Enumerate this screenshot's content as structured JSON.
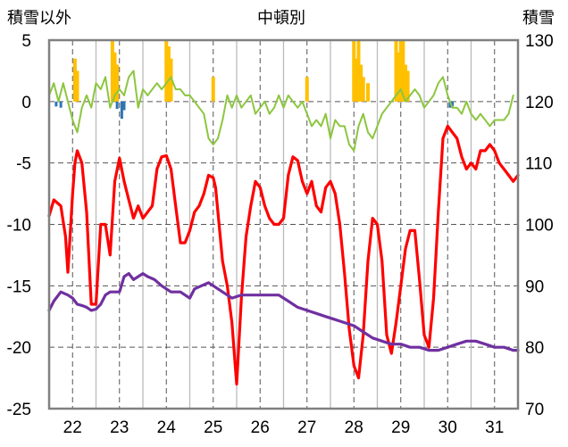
{
  "chart_data": {
    "type": "line",
    "left_axis_title": "積雪以外",
    "title": "中頓別",
    "right_axis_title": "積雪",
    "left_ylim": [
      -25,
      5
    ],
    "left_ticks": [
      5,
      0,
      -5,
      -10,
      -15,
      -20,
      -25
    ],
    "right_ylim": [
      70,
      130
    ],
    "right_ticks": [
      130,
      120,
      110,
      100,
      90,
      80,
      70
    ],
    "x_range": [
      21.5,
      31.5
    ],
    "x_ticks": [
      22,
      23,
      24,
      25,
      26,
      27,
      28,
      29,
      30,
      31
    ],
    "grid": "dashed",
    "series": [
      {
        "color": "#ff0000",
        "axis": "left",
        "x": [
          21.5,
          21.6,
          21.75,
          21.85,
          21.9,
          22.0,
          22.05,
          22.1,
          22.2,
          22.3,
          22.4,
          22.5,
          22.6,
          22.7,
          22.8,
          22.9,
          23.0,
          23.1,
          23.2,
          23.3,
          23.4,
          23.5,
          23.6,
          23.7,
          23.8,
          23.9,
          24.0,
          24.1,
          24.2,
          24.3,
          24.4,
          24.5,
          24.6,
          24.7,
          24.8,
          24.9,
          25.0,
          25.05,
          25.1,
          25.2,
          25.3,
          25.4,
          25.5,
          25.6,
          25.7,
          25.8,
          25.9,
          26.0,
          26.1,
          26.2,
          26.3,
          26.4,
          26.5,
          26.6,
          26.7,
          26.8,
          26.9,
          27.0,
          27.1,
          27.2,
          27.3,
          27.4,
          27.5,
          27.6,
          27.7,
          27.8,
          27.9,
          28.0,
          28.1,
          28.2,
          28.3,
          28.4,
          28.5,
          28.6,
          28.7,
          28.8,
          28.9,
          29.0,
          29.1,
          29.2,
          29.3,
          29.4,
          29.5,
          29.6,
          29.7,
          29.8,
          29.9,
          30.0,
          30.1,
          30.2,
          30.3,
          30.4,
          30.5,
          30.6,
          30.7,
          30.8,
          30.9,
          31.0,
          31.1,
          31.2,
          31.3,
          31.4,
          31.5
        ],
        "values": [
          -9.3,
          -8.0,
          -8.5,
          -11.0,
          -13.9,
          -7.5,
          -5.0,
          -4.0,
          -5.0,
          -9.0,
          -16.5,
          -16.5,
          -10.0,
          -10.0,
          -12.5,
          -6.5,
          -4.6,
          -6.5,
          -8.0,
          -9.5,
          -8.5,
          -9.5,
          -9.0,
          -8.5,
          -5.5,
          -4.5,
          -4.4,
          -5.5,
          -8.5,
          -11.5,
          -11.5,
          -10.5,
          -9.0,
          -8.5,
          -7.5,
          -6.0,
          -6.2,
          -7.0,
          -9.0,
          -13.0,
          -15.0,
          -18.0,
          -23.0,
          -16.0,
          -11.0,
          -8.5,
          -6.5,
          -7.0,
          -8.5,
          -9.5,
          -10.0,
          -10.0,
          -9.5,
          -6.0,
          -4.5,
          -4.8,
          -6.5,
          -7.5,
          -6.5,
          -8.5,
          -9.0,
          -7.0,
          -6.5,
          -7.5,
          -10.0,
          -14.0,
          -18.5,
          -21.5,
          -22.5,
          -19.0,
          -13.0,
          -9.5,
          -10.0,
          -13.0,
          -19.0,
          -20.5,
          -18.0,
          -15.0,
          -12.0,
          -10.5,
          -10.5,
          -14.5,
          -19.0,
          -20.0,
          -16.0,
          -9.0,
          -3.0,
          -2.0,
          -2.5,
          -3.0,
          -4.5,
          -5.5,
          -5.0,
          -5.5,
          -4.0,
          -4.0,
          -3.5,
          -4.0,
          -5.0,
          -5.5,
          -6.0,
          -6.5,
          -6.0
        ],
        "emphasis": "thick"
      },
      {
        "color": "#8cc63f",
        "axis": "left",
        "x": [
          21.5,
          21.6,
          21.7,
          21.8,
          21.9,
          22.0,
          22.1,
          22.2,
          22.3,
          22.4,
          22.5,
          22.6,
          22.7,
          22.8,
          22.9,
          23.0,
          23.1,
          23.2,
          23.3,
          23.4,
          23.5,
          23.6,
          23.7,
          23.8,
          23.9,
          24.0,
          24.1,
          24.2,
          24.3,
          24.4,
          24.5,
          24.6,
          24.7,
          24.8,
          24.9,
          25.0,
          25.1,
          25.2,
          25.3,
          25.4,
          25.5,
          25.6,
          25.7,
          25.8,
          25.9,
          26.0,
          26.1,
          26.2,
          26.3,
          26.4,
          26.5,
          26.6,
          26.7,
          26.8,
          26.9,
          27.0,
          27.1,
          27.2,
          27.3,
          27.4,
          27.5,
          27.6,
          27.7,
          27.8,
          27.9,
          28.0,
          28.1,
          28.2,
          28.3,
          28.4,
          28.5,
          28.6,
          28.7,
          28.8,
          28.9,
          29.0,
          29.1,
          29.2,
          29.3,
          29.4,
          29.5,
          29.6,
          29.7,
          29.8,
          29.9,
          30.0,
          30.1,
          30.2,
          30.3,
          30.4,
          30.5,
          30.6,
          30.7,
          30.8,
          30.9,
          31.0,
          31.1,
          31.2,
          31.3,
          31.4
        ],
        "values": [
          0.5,
          1.5,
          0.0,
          1.5,
          0.0,
          -1.5,
          -2.5,
          -0.5,
          0.5,
          -0.5,
          1.5,
          1.0,
          2.0,
          -0.5,
          0.5,
          1.0,
          0.5,
          2.0,
          2.5,
          -0.5,
          1.0,
          0.5,
          1.0,
          1.5,
          1.0,
          1.5,
          2.0,
          1.0,
          1.0,
          0.5,
          0.5,
          0.0,
          -0.5,
          -1.0,
          -3.0,
          -3.5,
          -3.0,
          -1.5,
          0.5,
          -0.5,
          0.5,
          -0.5,
          0.0,
          0.5,
          -1.0,
          -0.5,
          0.0,
          -1.0,
          -0.5,
          0.5,
          -0.5,
          0.5,
          0.0,
          -0.5,
          0.0,
          -1.0,
          -2.0,
          -1.5,
          -2.0,
          -1.0,
          -3.0,
          -1.5,
          -2.0,
          -2.0,
          -3.5,
          -4.0,
          -2.0,
          -1.0,
          -2.5,
          -3.0,
          -2.0,
          -1.0,
          -0.5,
          0.0,
          0.5,
          1.0,
          0.0,
          0.5,
          1.0,
          0.5,
          -0.5,
          0.0,
          0.5,
          1.5,
          2.0,
          0.5,
          -0.5,
          -0.5,
          -1.0,
          0.0,
          -1.0,
          -1.5,
          -1.0,
          -1.5,
          -2.0,
          -1.5,
          -1.5,
          -1.5,
          -1.0,
          0.5
        ],
        "emphasis": "thin"
      },
      {
        "color": "#7030a0",
        "axis": "right",
        "x": [
          21.5,
          21.6,
          21.75,
          21.9,
          22.0,
          22.1,
          22.2,
          22.3,
          22.4,
          22.5,
          22.6,
          22.7,
          22.8,
          22.9,
          23.0,
          23.1,
          23.2,
          23.3,
          23.5,
          23.6,
          23.75,
          23.9,
          24.0,
          24.1,
          24.3,
          24.4,
          24.5,
          24.6,
          24.75,
          24.9,
          25.0,
          25.2,
          25.4,
          25.6,
          25.8,
          26.0,
          26.2,
          26.4,
          26.6,
          26.8,
          27.0,
          27.2,
          27.4,
          27.6,
          27.8,
          28.0,
          28.2,
          28.4,
          28.6,
          28.8,
          29.0,
          29.2,
          29.4,
          29.6,
          29.8,
          30.0,
          30.2,
          30.4,
          30.6,
          30.8,
          31.0,
          31.2,
          31.4,
          31.5
        ],
        "values": [
          86,
          87.5,
          89,
          88.5,
          88,
          87,
          86.8,
          86.5,
          86,
          86.2,
          87,
          88.5,
          89,
          89,
          89,
          91.5,
          92,
          91,
          92,
          91.5,
          91,
          90,
          89.5,
          89,
          89,
          88.5,
          88,
          89.5,
          90,
          90.5,
          90,
          89,
          88,
          88.5,
          88.5,
          88.5,
          88.5,
          88.5,
          87.5,
          86.5,
          86,
          85.5,
          85,
          84.5,
          84,
          83.5,
          82.5,
          81.5,
          81,
          80.5,
          80.5,
          80,
          80,
          79.5,
          79.5,
          80,
          80.5,
          81,
          81,
          80.5,
          80,
          80,
          79.5,
          79.5
        ],
        "emphasis": "thick"
      }
    ],
    "bars_positive": {
      "color": "#ffc000",
      "axis": "left",
      "x": [
        22.05,
        22.1,
        22.85,
        22.9,
        22.95,
        24.0,
        24.05,
        24.1,
        25.0,
        27.0,
        28.0,
        28.05,
        28.1,
        28.15,
        28.2,
        28.3,
        28.9,
        28.95,
        29.0,
        29.05,
        29.1,
        29.15
      ],
      "values": [
        3.5,
        2.5,
        5.0,
        4.0,
        3.0,
        5.0,
        4.5,
        3.5,
        2.0,
        2.0,
        5.0,
        3.5,
        5.0,
        3.0,
        2.0,
        1.5,
        5.0,
        4.0,
        5.0,
        5.0,
        3.0,
        2.5
      ]
    },
    "bars_negative": {
      "color": "#2e75b6",
      "axis": "left",
      "x": [
        21.65,
        21.75,
        22.95,
        23.05,
        23.1,
        30.05,
        30.1
      ],
      "values": [
        -0.4,
        -0.5,
        -0.6,
        -1.4,
        -0.7,
        -0.5,
        -0.4
      ]
    },
    "frame_color": "#808080"
  }
}
